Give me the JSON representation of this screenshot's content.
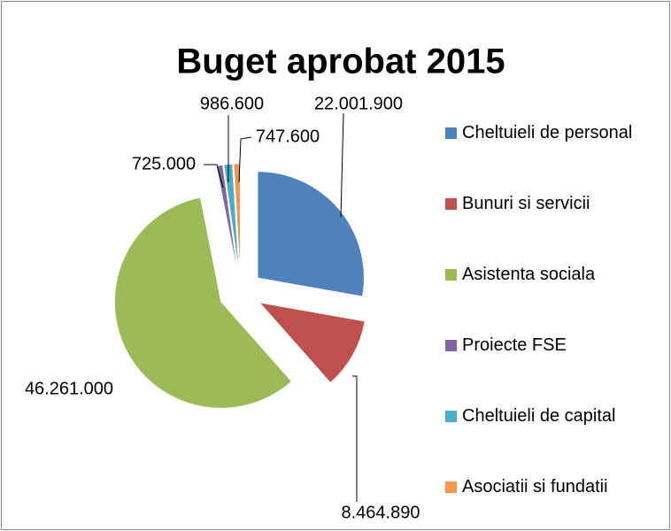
{
  "chart_data": {
    "type": "pie",
    "title": "Buget aprobat 2015",
    "categories": [
      "Cheltuieli de personal",
      "Bunuri si servicii",
      "Asistenta sociala",
      "Proiecte FSE",
      "Cheltuieli de capital",
      "Asociatii si fundatii"
    ],
    "values": [
      22001900,
      8464890,
      46261000,
      725000,
      986600,
      747600
    ],
    "value_labels": [
      "22.001.900",
      "8.464.890",
      "46.261.000",
      "725.000",
      "986.600",
      "747.600"
    ],
    "colors": [
      "#4f81bd",
      "#c0504d",
      "#9bbb59",
      "#8064a2",
      "#4bacc6",
      "#f79646"
    ],
    "legend": "right"
  }
}
